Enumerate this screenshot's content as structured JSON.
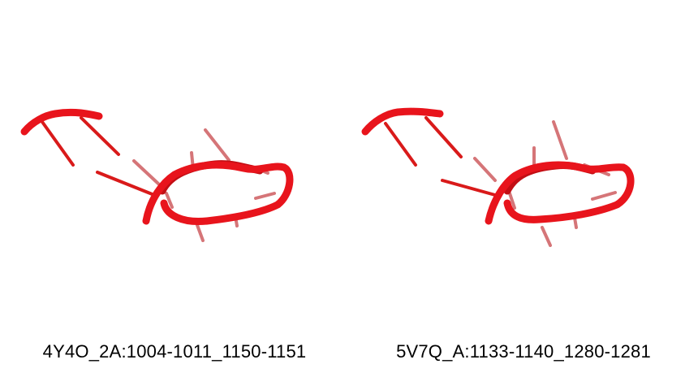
{
  "colors": {
    "backbone": "#e8141c",
    "backbone_dark": "#c20e14",
    "bases": "#d91a1a",
    "bases_faded": "#c8484c",
    "caption_text": "#000000",
    "background": "#ffffff"
  },
  "panels": [
    {
      "id": "left",
      "label": "4Y4O_2A:1004-1011_1150-1151"
    },
    {
      "id": "right",
      "label": "5V7Q_A:1133-1140_1280-1281"
    }
  ]
}
